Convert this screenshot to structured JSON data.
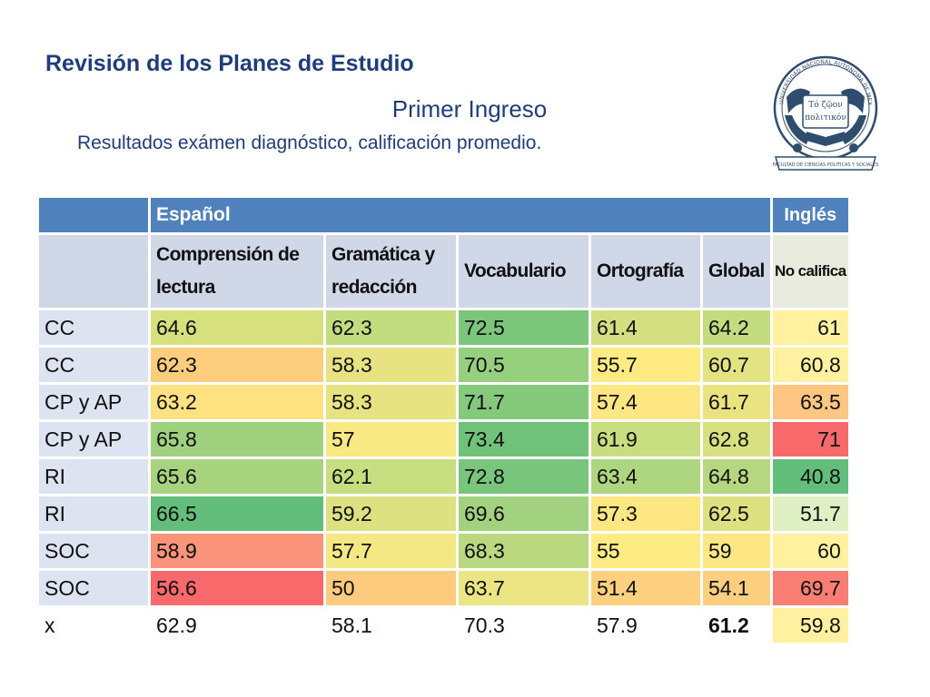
{
  "header": {
    "title": "Revisión de los Planes de Estudio",
    "subtitle": "Primer Ingreso",
    "subtitle2": "Resultados exámen diagnóstico, calificación promedio."
  },
  "logo": {
    "icon": "unam-fcpys-seal",
    "text_top": "UNIVERSIDAD NACIONAL AUTONOMA DE MEXICO",
    "motto_line1": "Τό ζῷον",
    "motto_line2": "πολιτικόν",
    "text_bottom": "FACULTAD DE CIENCIAS POLITICAS Y SOCIALES"
  },
  "table": {
    "group_headers": {
      "espanol": "Español",
      "ingles": "Inglés"
    },
    "columns": [
      "Comprensión de lectura",
      "Gramática y redacción",
      "Vocabulario",
      "Ortografía",
      "Global"
    ],
    "ingles_column": "No califica",
    "rows": [
      {
        "label": "CC",
        "values": [
          "64.6",
          "62.3",
          "72.5",
          "61.4",
          "64.2"
        ],
        "ingles": "61",
        "colors": [
          "#d6e07f",
          "#c2dc80",
          "#7cc67b",
          "#d3df80",
          "#c3dc7f"
        ],
        "ingles_color": "#fff1a0"
      },
      {
        "label": "CC",
        "values": [
          "62.3",
          "58.3",
          "70.5",
          "55.7",
          "60.7"
        ],
        "ingles": "60.8",
        "colors": [
          "#fdcd7e",
          "#e7e382",
          "#96cf7d",
          "#ffea84",
          "#e4e383"
        ],
        "ingles_color": "#fff1a0"
      },
      {
        "label": "CP y AP",
        "values": [
          "63.2",
          "58.3",
          "71.7",
          "57.4",
          "61.7"
        ],
        "ingles": "63.5",
        "colors": [
          "#fee282",
          "#e7e382",
          "#85c97c",
          "#fee683",
          "#e9e382"
        ],
        "ingles_color": "#fdc682"
      },
      {
        "label": "CP y AP",
        "values": [
          "65.8",
          "57",
          "73.4",
          "61.9",
          "62.8"
        ],
        "ingles": "71",
        "colors": [
          "#a0d17e",
          "#f9e983",
          "#70c27a",
          "#c8dd80",
          "#d8e081"
        ],
        "ingles_color": "#f8696b"
      },
      {
        "label": "RI",
        "values": [
          "65.6",
          "62.1",
          "72.8",
          "63.4",
          "64.8"
        ],
        "ingles": "40.8",
        "colors": [
          "#a7d37f",
          "#c6dd80",
          "#78c57b",
          "#aed580",
          "#b6d780"
        ],
        "ingles_color": "#63be7b"
      },
      {
        "label": "RI",
        "values": [
          "66.5",
          "59.2",
          "69.6",
          "57.3",
          "62.5"
        ],
        "ingles": "51.7",
        "colors": [
          "#63be7b",
          "#dde182",
          "#a2d27f",
          "#fee683",
          "#dde182"
        ],
        "ingles_color": "#dff0c4"
      },
      {
        "label": "SOC",
        "values": [
          "58.9",
          "57.7",
          "68.3",
          "55",
          "59"
        ],
        "ingles": "60",
        "colors": [
          "#f9937a",
          "#f3e883",
          "#b9d880",
          "#ffeb84",
          "#fde784"
        ],
        "ingles_color": "#fff1a0"
      },
      {
        "label": "SOC",
        "values": [
          "56.6",
          "50",
          "63.7",
          "51.4",
          "54.1"
        ],
        "ingles": "69.7",
        "colors": [
          "#f8696b",
          "#fdcb7d",
          "#ebe583",
          "#fdd07f",
          "#fcce7f"
        ],
        "ingles_color": "#f87e74"
      },
      {
        "label": "x",
        "values": [
          "62.9",
          "58.1",
          "70.3",
          "57.9",
          "61.2"
        ],
        "ingles": "59.8",
        "colors": [
          "#ffffff",
          "#ffffff",
          "#ffffff",
          "#ffffff",
          "#ffffff"
        ],
        "ingles_color": "#fff1a0"
      }
    ]
  }
}
